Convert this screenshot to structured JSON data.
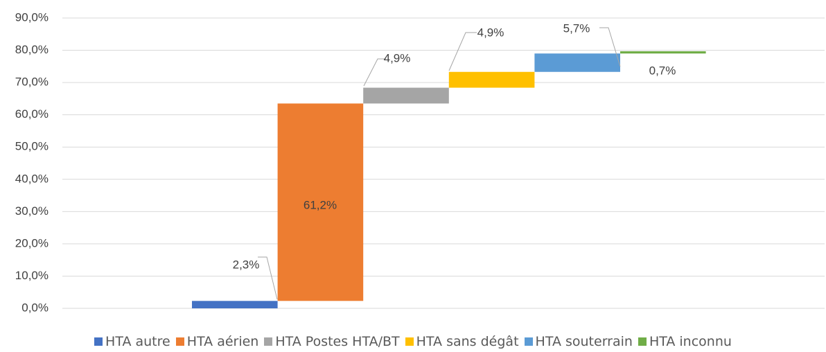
{
  "chart_data": {
    "type": "waterfall",
    "series": [
      {
        "name": "HTA autre",
        "color": "#4472c4",
        "values": [
          2.3
        ],
        "value_labels": [
          "2,3%"
        ]
      },
      {
        "name": "HTA aérien",
        "color": "#ed7d31",
        "values": [
          61.2
        ],
        "value_labels": [
          "61,2%"
        ]
      },
      {
        "name": "HTA Postes HTA/BT",
        "color": "#a5a5a5",
        "values": [
          4.9
        ],
        "value_labels": [
          "4,9%"
        ]
      },
      {
        "name": "HTA sans dégât",
        "color": "#ffc000",
        "values": [
          4.9
        ],
        "value_labels": [
          "4,9%"
        ]
      },
      {
        "name": "HTA souterrain",
        "color": "#5b9bd5",
        "values": [
          5.7
        ],
        "value_labels": [
          "5,7%"
        ]
      },
      {
        "name": "HTA inconnu",
        "color": "#70ad47",
        "values": [
          0.7
        ],
        "value_labels": [
          "0,7%"
        ]
      }
    ],
    "ylim": [
      0,
      90
    ],
    "yticks": [
      {
        "value": 0,
        "label": "0,0%"
      },
      {
        "value": 10,
        "label": "10,0%"
      },
      {
        "value": 20,
        "label": "20,0%"
      },
      {
        "value": 30,
        "label": "30,0%"
      },
      {
        "value": 40,
        "label": "40,0%"
      },
      {
        "value": 50,
        "label": "50,0%"
      },
      {
        "value": 60,
        "label": "60,0%"
      },
      {
        "value": 70,
        "label": "70,0%"
      },
      {
        "value": 80,
        "label": "80,0%"
      },
      {
        "value": 90,
        "label": "90,0%"
      }
    ],
    "grid": true
  }
}
